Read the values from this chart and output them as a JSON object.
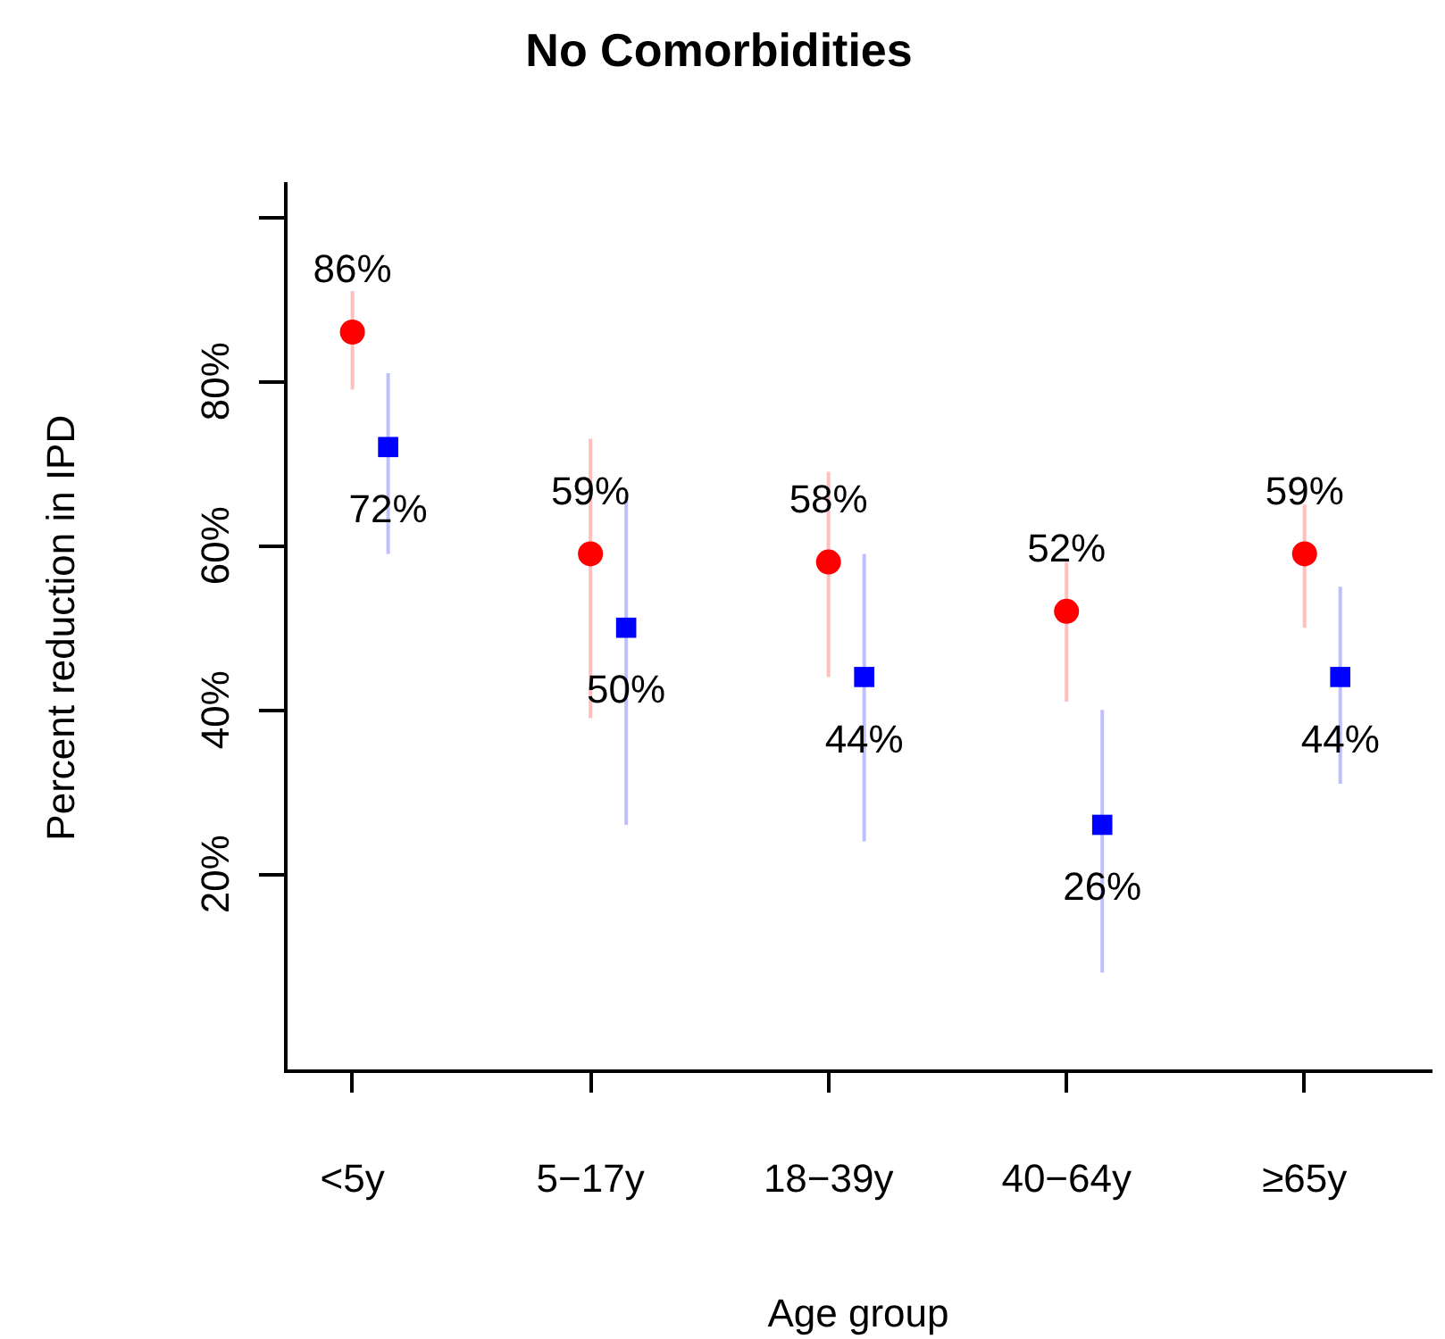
{
  "chart_data": {
    "type": "scatter",
    "title": "No Comorbidities",
    "xlabel": "Age group",
    "ylabel": "Percent reduction in IPD",
    "categories": [
      "<5y",
      "5−17y",
      "18−39y",
      "40−64y",
      "≥65y"
    ],
    "series": [
      {
        "color": "#ff0000",
        "marker": "circle",
        "values": [
          86,
          59,
          58,
          52,
          59
        ],
        "value_labels": [
          "86%",
          "59%",
          "58%",
          "52%",
          "59%"
        ],
        "errors": [
          [
            79,
            91
          ],
          [
            39,
            73
          ],
          [
            44,
            69
          ],
          [
            41,
            58
          ],
          [
            50,
            65
          ]
        ]
      },
      {
        "color": "#0000ff",
        "marker": "square",
        "values": [
          72,
          50,
          44,
          26,
          44
        ],
        "value_labels": [
          "72%",
          "50%",
          "44%",
          "26%",
          "44%"
        ],
        "errors": [
          [
            59,
            81
          ],
          [
            26,
            66
          ],
          [
            24,
            59
          ],
          [
            8,
            40
          ],
          [
            31,
            55
          ]
        ]
      }
    ],
    "ylim": [
      -4,
      104
    ],
    "yticks": [
      {
        "value": 20,
        "label": "20%"
      },
      {
        "value": 40,
        "label": "40%"
      },
      {
        "value": 60,
        "label": "60%"
      },
      {
        "value": 80,
        "label": "80%"
      },
      {
        "value": 100,
        "label": null
      }
    ],
    "grid": false,
    "legend": false
  }
}
